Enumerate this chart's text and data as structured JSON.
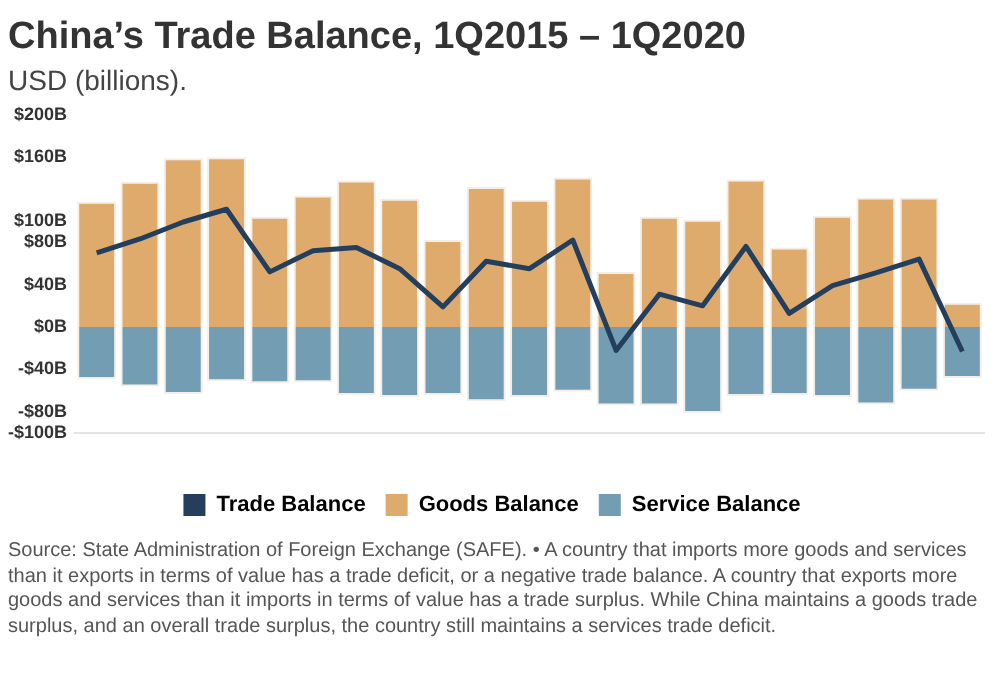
{
  "chart_data": {
    "type": "bar",
    "stacked": true,
    "title": "China’s Trade Balance, 1Q2015 – 1Q2020",
    "subtitle": "USD (billions).",
    "categories": [
      null,
      null,
      null,
      null,
      null,
      null,
      null,
      null,
      null,
      null,
      null,
      null,
      null,
      null,
      null,
      null,
      null,
      null,
      null,
      null,
      null
    ],
    "series": [
      {
        "name": "Trade Balance",
        "type": "line",
        "color": "#243f5e",
        "values": [
          70,
          83,
          99,
          111,
          52,
          72,
          75,
          55,
          19,
          62,
          55,
          82,
          -22,
          31,
          20,
          76,
          13,
          39,
          51,
          64,
          -23
        ]
      },
      {
        "name": "Goods Balance",
        "color": "#dfab6c",
        "values": [
          118,
          137,
          159,
          160,
          104,
          124,
          138,
          121,
          82,
          132,
          120,
          141,
          52,
          104,
          101,
          139,
          75,
          105,
          122,
          122,
          23
        ]
      },
      {
        "name": "Service Balance",
        "color": "#739db2",
        "values": [
          -49,
          -56,
          -63,
          -51,
          -53,
          -52,
          -64,
          -66,
          -64,
          -70,
          -66,
          -61,
          -74,
          -74,
          -81,
          -65,
          -64,
          -66,
          -73,
          -60,
          -48
        ]
      }
    ],
    "ylim": [
      -100,
      200
    ],
    "yticks": [
      {
        "value": -100,
        "label": "-$100B"
      },
      {
        "value": -80,
        "label": "-$80B"
      },
      {
        "value": -40,
        "label": "-$40B"
      },
      {
        "value": 0,
        "label": "$0B"
      },
      {
        "value": 40,
        "label": "$40B"
      },
      {
        "value": 80,
        "label": "$80B"
      },
      {
        "value": 100,
        "label": "$100B"
      },
      {
        "value": 160,
        "label": "$160B"
      },
      {
        "value": 200,
        "label": "$200B"
      }
    ],
    "grid": false,
    "legend": "bottom",
    "marker": "none",
    "annotations": [
      "Source: State Administration of Foreign Exchange (SAFE). • A country that imports more goods and services than it exports in terms of value has a trade deficit, or a negative trade balance. A country that exports more goods and services than it imports in terms of value has a trade surplus. While China maintains a goods trade surplus, and an overall trade surplus, the country still maintains a services trade deficit."
    ]
  }
}
